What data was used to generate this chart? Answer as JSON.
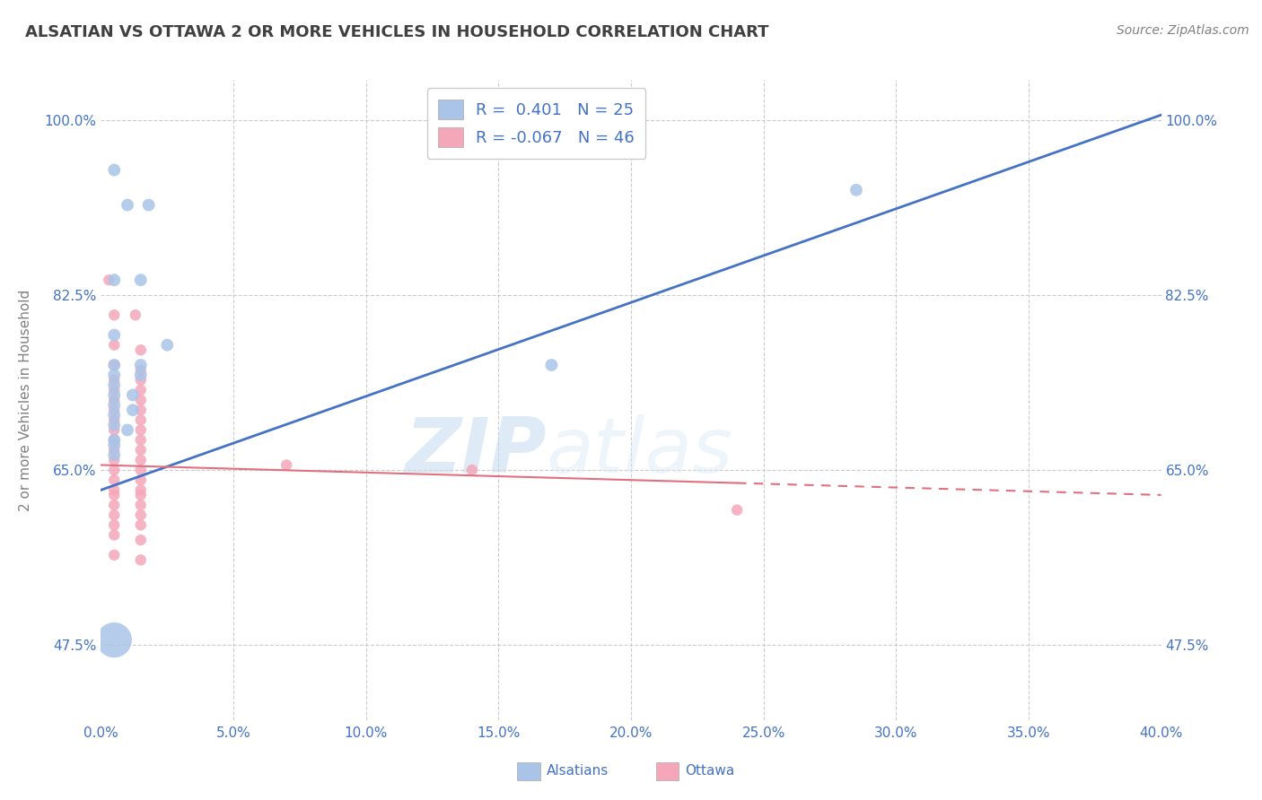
{
  "title": "ALSATIAN VS OTTAWA 2 OR MORE VEHICLES IN HOUSEHOLD CORRELATION CHART",
  "source": "Source: ZipAtlas.com",
  "ylabel": "2 or more Vehicles in Household",
  "xlim": [
    0.0,
    40.0
  ],
  "ylim": [
    40.0,
    104.0
  ],
  "yticks": [
    47.5,
    65.0,
    82.5,
    100.0
  ],
  "xticks": [
    0.0,
    5.0,
    10.0,
    15.0,
    20.0,
    25.0,
    30.0,
    35.0,
    40.0
  ],
  "alsatian_R": 0.401,
  "alsatian_N": 25,
  "ottawa_R": -0.067,
  "ottawa_N": 46,
  "alsatian_color": "#aac4e8",
  "ottawa_color": "#f4a7b9",
  "alsatian_line_color": "#4472c4",
  "ottawa_line_color": "#e07080",
  "watermark_zip": "ZIP",
  "watermark_atlas": "atlas",
  "alsatian_points": [
    [
      0.5,
      95.0
    ],
    [
      1.0,
      91.5
    ],
    [
      1.8,
      91.5
    ],
    [
      0.5,
      84.0
    ],
    [
      1.5,
      84.0
    ],
    [
      0.5,
      78.5
    ],
    [
      2.5,
      77.5
    ],
    [
      0.5,
      75.5
    ],
    [
      1.5,
      75.5
    ],
    [
      0.5,
      74.5
    ],
    [
      1.5,
      74.5
    ],
    [
      0.5,
      73.5
    ],
    [
      0.5,
      72.5
    ],
    [
      1.2,
      72.5
    ],
    [
      0.5,
      71.5
    ],
    [
      1.2,
      71.0
    ],
    [
      0.5,
      70.5
    ],
    [
      0.5,
      69.5
    ],
    [
      1.0,
      69.0
    ],
    [
      0.5,
      68.0
    ],
    [
      0.5,
      67.5
    ],
    [
      0.5,
      66.5
    ],
    [
      0.5,
      48.0
    ],
    [
      17.0,
      75.5
    ],
    [
      28.5,
      93.0
    ]
  ],
  "alsatian_sizes": [
    100,
    100,
    100,
    100,
    100,
    100,
    100,
    100,
    100,
    100,
    100,
    100,
    100,
    100,
    100,
    100,
    100,
    100,
    100,
    100,
    100,
    100,
    800,
    100,
    100
  ],
  "ottawa_points": [
    [
      0.3,
      84.0
    ],
    [
      0.5,
      80.5
    ],
    [
      1.3,
      80.5
    ],
    [
      0.5,
      77.5
    ],
    [
      1.5,
      77.0
    ],
    [
      0.5,
      75.5
    ],
    [
      1.5,
      75.0
    ],
    [
      0.5,
      74.0
    ],
    [
      1.5,
      74.0
    ],
    [
      0.5,
      73.0
    ],
    [
      1.5,
      73.0
    ],
    [
      0.5,
      72.0
    ],
    [
      1.5,
      72.0
    ],
    [
      0.5,
      71.0
    ],
    [
      1.5,
      71.0
    ],
    [
      0.5,
      70.0
    ],
    [
      1.5,
      70.0
    ],
    [
      0.5,
      69.0
    ],
    [
      1.5,
      69.0
    ],
    [
      0.5,
      68.0
    ],
    [
      1.5,
      68.0
    ],
    [
      0.5,
      67.0
    ],
    [
      1.5,
      67.0
    ],
    [
      0.5,
      66.0
    ],
    [
      1.5,
      66.0
    ],
    [
      0.5,
      65.0
    ],
    [
      1.5,
      65.0
    ],
    [
      0.5,
      64.0
    ],
    [
      1.5,
      64.0
    ],
    [
      0.5,
      63.0
    ],
    [
      1.5,
      63.0
    ],
    [
      0.5,
      62.5
    ],
    [
      1.5,
      62.5
    ],
    [
      0.5,
      61.5
    ],
    [
      1.5,
      61.5
    ],
    [
      0.5,
      60.5
    ],
    [
      1.5,
      60.5
    ],
    [
      0.5,
      59.5
    ],
    [
      1.5,
      59.5
    ],
    [
      0.5,
      58.5
    ],
    [
      1.5,
      58.0
    ],
    [
      0.5,
      56.5
    ],
    [
      1.5,
      56.0
    ],
    [
      7.0,
      65.5
    ],
    [
      14.0,
      65.0
    ],
    [
      24.0,
      61.0
    ]
  ],
  "alsatian_trend_x": [
    0.0,
    40.0
  ],
  "alsatian_trend_y": [
    63.0,
    100.5
  ],
  "ottawa_trend_x": [
    0.0,
    40.0
  ],
  "ottawa_trend_y": [
    65.5,
    62.5
  ],
  "ottawa_solid_end": 24.0,
  "background_color": "#ffffff",
  "grid_color": "#cccccc",
  "title_color": "#404040",
  "axis_color": "#4472c4",
  "label_color": "#808080"
}
